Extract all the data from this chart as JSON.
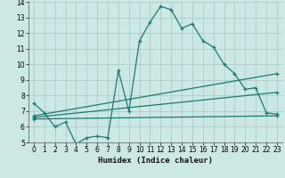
{
  "xlabel": "Humidex (Indice chaleur)",
  "xlim": [
    -0.5,
    23.5
  ],
  "ylim": [
    5,
    14
  ],
  "yticks": [
    5,
    6,
    7,
    8,
    9,
    10,
    11,
    12,
    13,
    14
  ],
  "xticks": [
    0,
    1,
    2,
    3,
    4,
    5,
    6,
    7,
    8,
    9,
    10,
    11,
    12,
    13,
    14,
    15,
    16,
    17,
    18,
    19,
    20,
    21,
    22,
    23
  ],
  "background_color": "#cce8e4",
  "grid_color": "#aaccca",
  "line_color": "#1a7a6e",
  "lines": [
    {
      "x": [
        0,
        1,
        2,
        3,
        4,
        5,
        6,
        7,
        8,
        9,
        10,
        11,
        12,
        13,
        14,
        15,
        16,
        17,
        18,
        19,
        20,
        21,
        22,
        23
      ],
      "y": [
        7.5,
        6.9,
        6.0,
        6.3,
        4.9,
        5.3,
        5.4,
        5.3,
        9.6,
        7.0,
        11.5,
        12.7,
        13.7,
        13.5,
        12.3,
        12.6,
        11.5,
        11.1,
        10.0,
        9.4,
        8.4,
        8.5,
        6.9,
        6.8
      ]
    },
    {
      "x": [
        0,
        23
      ],
      "y": [
        6.5,
        6.7
      ]
    },
    {
      "x": [
        0,
        23
      ],
      "y": [
        6.6,
        8.2
      ]
    },
    {
      "x": [
        0,
        23
      ],
      "y": [
        6.7,
        9.4
      ]
    }
  ]
}
